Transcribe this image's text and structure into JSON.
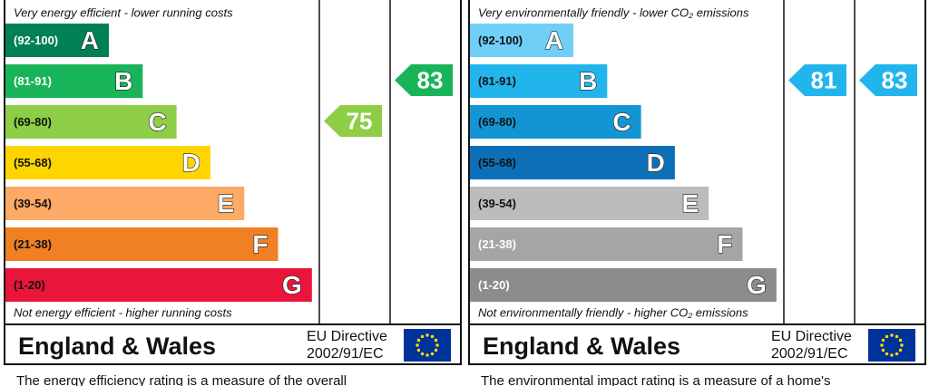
{
  "panels": [
    {
      "top_note": "Very energy efficient - lower running costs",
      "bottom_note": "Not energy efficient - higher running costs",
      "bands": [
        {
          "range": "(92-100)",
          "letter": "A",
          "color": "#008054",
          "text_color": "#ffffff"
        },
        {
          "range": "(81-91)",
          "letter": "B",
          "color": "#19b459",
          "text_color": "#ffffff"
        },
        {
          "range": "(69-80)",
          "letter": "C",
          "color": "#8dce46",
          "text_color": "#111111"
        },
        {
          "range": "(55-68)",
          "letter": "D",
          "color": "#ffd500",
          "text_color": "#111111"
        },
        {
          "range": "(39-54)",
          "letter": "E",
          "color": "#fcaa65",
          "text_color": "#111111"
        },
        {
          "range": "(21-38)",
          "letter": "F",
          "color": "#ef8023",
          "text_color": "#111111"
        },
        {
          "range": "(1-20)",
          "letter": "G",
          "color": "#e9153b",
          "text_color": "#111111"
        }
      ],
      "current": {
        "value": 75,
        "band": 2,
        "color": "#8dce46"
      },
      "potential": {
        "value": 83,
        "band": 1,
        "color": "#19b459"
      },
      "footer": "England & Wales",
      "directive_line1": "EU Directive",
      "directive_line2": "2002/91/EC",
      "description": "The energy efficiency rating is a measure of the overall"
    },
    {
      "top_note": "Very environmentally friendly - lower CO₂ emissions",
      "bottom_note": "Not environmentally friendly - higher CO₂ emissions",
      "bands": [
        {
          "range": "(92-100)",
          "letter": "A",
          "color": "#6fcff6",
          "text_color": "#111111"
        },
        {
          "range": "(81-91)",
          "letter": "B",
          "color": "#22b5ec",
          "text_color": "#111111"
        },
        {
          "range": "(69-80)",
          "letter": "C",
          "color": "#1495d3",
          "text_color": "#111111"
        },
        {
          "range": "(55-68)",
          "letter": "D",
          "color": "#0d6fb7",
          "text_color": "#111111"
        },
        {
          "range": "(39-54)",
          "letter": "E",
          "color": "#bcbcbc",
          "text_color": "#111111"
        },
        {
          "range": "(21-38)",
          "letter": "F",
          "color": "#a5a5a5",
          "text_color": "#ffffff"
        },
        {
          "range": "(1-20)",
          "letter": "G",
          "color": "#8c8c8c",
          "text_color": "#ffffff"
        }
      ],
      "current": {
        "value": 81,
        "band": 1,
        "color": "#22b5ec"
      },
      "potential": {
        "value": 83,
        "band": 1,
        "color": "#22b5ec"
      },
      "footer": "England & Wales",
      "directive_line1": "EU Directive",
      "directive_line2": "2002/91/EC",
      "description": "The environmental impact rating is a measure of a home's"
    }
  ]
}
